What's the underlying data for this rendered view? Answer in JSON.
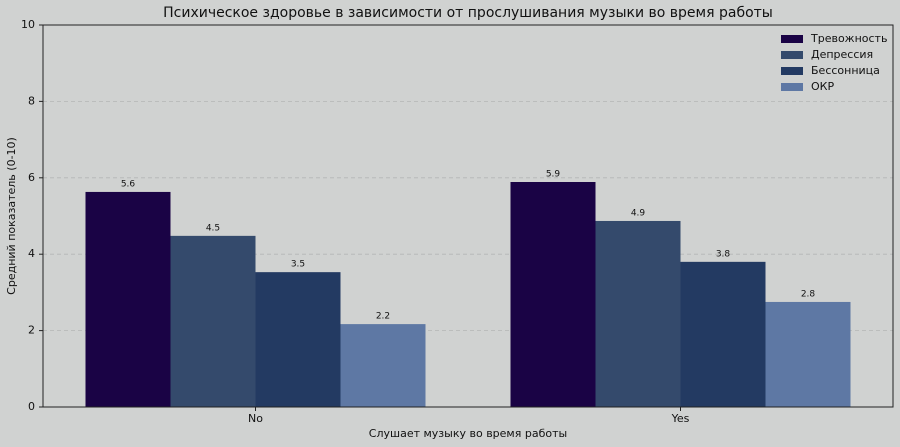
{
  "chart_data": {
    "type": "bar",
    "title": "Психическое здоровье в зависимости от прослушивания музыки во время работы",
    "x_label": "Слушает музыку во время работы",
    "y_label": "Средний показатель (0-10)",
    "categories": [
      "No",
      "Yes"
    ],
    "series": [
      {
        "name": "Тревожность",
        "color": "#1a0345",
        "values": [
          5.63,
          5.89
        ],
        "value_labels": [
          "5.6",
          "5.9"
        ]
      },
      {
        "name": "Депрессия",
        "color": "#344a6c",
        "values": [
          4.48,
          4.87
        ],
        "value_labels": [
          "4.5",
          "4.9"
        ]
      },
      {
        "name": "Бессонница",
        "color": "#233a62",
        "values": [
          3.53,
          3.8
        ],
        "value_labels": [
          "3.5",
          "3.8"
        ]
      },
      {
        "name": "ОКР",
        "color": "#5e78a4",
        "values": [
          2.17,
          2.75
        ],
        "value_labels": [
          "2.2",
          "2.8"
        ]
      }
    ],
    "ylim": [
      0,
      10
    ],
    "yticks": [
      0,
      2,
      4,
      6,
      8,
      10
    ],
    "grid": true,
    "legend": "upper right"
  }
}
